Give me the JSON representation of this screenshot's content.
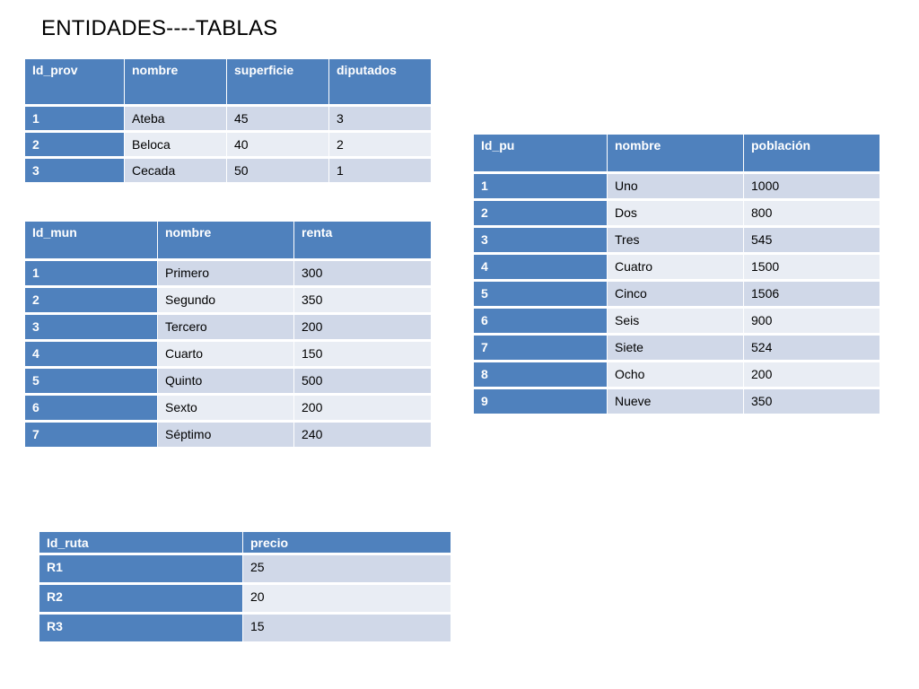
{
  "title": "ENTIDADES----TABLAS",
  "tables": {
    "provincias": {
      "headers": [
        "Id_prov",
        "nombre",
        "superficie",
        "diputados"
      ],
      "rows": [
        [
          "1",
          "Ateba",
          "45",
          "3"
        ],
        [
          "2",
          "Beloca",
          "40",
          "2"
        ],
        [
          "3",
          "Cecada",
          "50",
          "1"
        ]
      ]
    },
    "municipios": {
      "headers": [
        "Id_mun",
        "nombre",
        "renta"
      ],
      "rows": [
        [
          "1",
          "Primero",
          "300"
        ],
        [
          "2",
          "Segundo",
          "350"
        ],
        [
          "3",
          "Tercero",
          "200"
        ],
        [
          "4",
          "Cuarto",
          "150"
        ],
        [
          "5",
          "Quinto",
          "500"
        ],
        [
          "6",
          "Sexto",
          "200"
        ],
        [
          "7",
          "Séptimo",
          "240"
        ]
      ]
    },
    "pueblos": {
      "headers": [
        "Id_pu",
        "nombre",
        "población"
      ],
      "rows": [
        [
          "1",
          "Uno",
          "1000"
        ],
        [
          "2",
          "Dos",
          "800"
        ],
        [
          "3",
          "Tres",
          "545"
        ],
        [
          "4",
          "Cuatro",
          "1500"
        ],
        [
          "5",
          "Cinco",
          "1506"
        ],
        [
          "6",
          "Seis",
          "900"
        ],
        [
          "7",
          "Siete",
          "524"
        ],
        [
          "8",
          "Ocho",
          "200"
        ],
        [
          "9",
          "Nueve",
          "350"
        ]
      ]
    },
    "rutas": {
      "headers": [
        "Id_ruta",
        "precio"
      ],
      "rows": [
        [
          "R1",
          "25"
        ],
        [
          "R2",
          "20"
        ],
        [
          "R3",
          "15"
        ]
      ]
    }
  },
  "colors": {
    "header": "#4f81bd",
    "row_dark": "#d0d8e8",
    "row_light": "#e9edf4"
  }
}
